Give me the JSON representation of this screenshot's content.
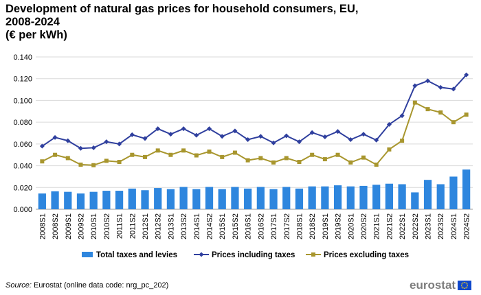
{
  "title_lines": [
    "Development of natural gas prices for household consumers, EU,",
    "2008-2024",
    "(€ per kWh)"
  ],
  "source": {
    "label": "Source:",
    "text": " Eurostat (online data code: nrg_pc_202)"
  },
  "logo": {
    "text": "eurostat",
    "flag_color": "#0e47cb",
    "star_color": "#ffd617"
  },
  "chart_data": {
    "type": "bar+line",
    "title": "Development of natural gas prices for household consumers, EU, 2008-2024 (€ per kWh)",
    "xlabel": "",
    "ylabel": "",
    "ylim": [
      0,
      0.14
    ],
    "yticks": [
      "0.000",
      "0.020",
      "0.040",
      "0.060",
      "0.080",
      "0.100",
      "0.120",
      "0.140"
    ],
    "ytick_values": [
      0,
      0.02,
      0.04,
      0.06,
      0.08,
      0.1,
      0.12,
      0.14
    ],
    "grid": true,
    "legend_position": "bottom",
    "categories": [
      "2008S1",
      "2008S2",
      "2009S1",
      "2009S2",
      "2010S1",
      "2010S2",
      "2011S1",
      "2011S2",
      "2012S1",
      "2012S2",
      "2013S1",
      "2013S2",
      "2014S1",
      "2014S2",
      "2015S1",
      "2015S2",
      "2016S1",
      "2016S2",
      "2017S1",
      "2017S2",
      "2018S1",
      "2018S2",
      "2019S1",
      "2019S2",
      "2020S1",
      "2020S2",
      "2021S1",
      "2021S2",
      "2022S1",
      "2022S2",
      "2023S1",
      "2023S2",
      "2024S1",
      "2024S2"
    ],
    "series": [
      {
        "name": "Total taxes and levies",
        "type": "bar",
        "color": "#2e86de",
        "values": [
          0.0145,
          0.0165,
          0.016,
          0.0145,
          0.016,
          0.017,
          0.017,
          0.019,
          0.0175,
          0.0195,
          0.0185,
          0.0205,
          0.0185,
          0.0205,
          0.0185,
          0.0205,
          0.019,
          0.0205,
          0.0185,
          0.0205,
          0.019,
          0.021,
          0.021,
          0.022,
          0.021,
          0.0215,
          0.0225,
          0.0235,
          0.023,
          0.0155,
          0.027,
          0.023,
          0.03,
          0.0365
        ]
      },
      {
        "name": "Prices including taxes",
        "type": "line",
        "marker": "diamond",
        "color": "#2f3f9e",
        "values": [
          0.058,
          0.066,
          0.063,
          0.056,
          0.0565,
          0.062,
          0.06,
          0.0685,
          0.065,
          0.074,
          0.069,
          0.074,
          0.068,
          0.074,
          0.067,
          0.072,
          0.064,
          0.067,
          0.061,
          0.0675,
          0.062,
          0.0705,
          0.0665,
          0.0715,
          0.064,
          0.069,
          0.0635,
          0.078,
          0.086,
          0.1135,
          0.118,
          0.112,
          0.1105,
          0.1235
        ]
      },
      {
        "name": "Prices excluding taxes",
        "type": "line",
        "marker": "square",
        "color": "#a8962e",
        "values": [
          0.044,
          0.05,
          0.047,
          0.041,
          0.0405,
          0.0445,
          0.0435,
          0.05,
          0.048,
          0.054,
          0.05,
          0.054,
          0.0495,
          0.053,
          0.048,
          0.052,
          0.045,
          0.047,
          0.043,
          0.047,
          0.0435,
          0.05,
          0.046,
          0.05,
          0.043,
          0.0475,
          0.041,
          0.055,
          0.063,
          0.098,
          0.092,
          0.089,
          0.08,
          0.087
        ]
      }
    ]
  }
}
